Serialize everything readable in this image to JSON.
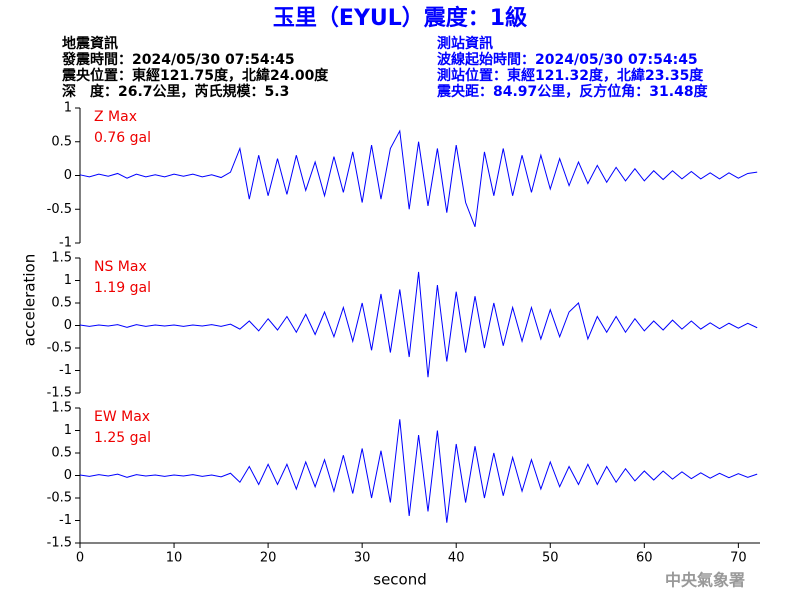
{
  "chart_data": {
    "type": "line",
    "title": "玉里（EYUL）震度：1級",
    "info_left": [
      "地震資訊",
      "發震時間：2024/05/30 07:54:45",
      "震央位置：東經121.75度，北緯24.00度",
      "深　度：26.7公里，芮氏規模：5.3"
    ],
    "info_right": [
      "測站資訊",
      "波線起始時間：2024/05/30 07:54:45",
      "測站位置：東經121.32度，北緯23.35度",
      "震央距：84.97公里，反方位角：31.48度"
    ],
    "xlabel": "second",
    "ylabel": "acceleration",
    "footer": "中央氣象署",
    "x": [
      0,
      1,
      2,
      3,
      4,
      5,
      6,
      7,
      8,
      9,
      10,
      11,
      12,
      13,
      14,
      15,
      16,
      17,
      18,
      19,
      20,
      21,
      22,
      23,
      24,
      25,
      26,
      27,
      28,
      29,
      30,
      31,
      32,
      33,
      34,
      35,
      36,
      37,
      38,
      39,
      40,
      41,
      42,
      43,
      44,
      45,
      46,
      47,
      48,
      49,
      50,
      51,
      52,
      53,
      54,
      55,
      56,
      57,
      58,
      59,
      60,
      61,
      62,
      63,
      64,
      65,
      66,
      67,
      68,
      69,
      70,
      71,
      72
    ],
    "xlim": [
      0,
      72.3
    ],
    "xticks": [
      0,
      10,
      20,
      30,
      40,
      50,
      60,
      70
    ],
    "series": [
      {
        "name": "Z Max",
        "peak": "0.76 gal",
        "color": "#0000ff",
        "ylim": [
          -1,
          1
        ],
        "yticks": [
          -1,
          -0.5,
          0,
          0.5,
          1
        ],
        "values": [
          0.01,
          -0.02,
          0.02,
          -0.01,
          0.03,
          -0.04,
          0.02,
          -0.02,
          0.01,
          -0.02,
          0.02,
          -0.01,
          0.02,
          -0.02,
          0.01,
          -0.03,
          0.05,
          0.4,
          -0.35,
          0.3,
          -0.3,
          0.25,
          -0.28,
          0.3,
          -0.22,
          0.2,
          -0.3,
          0.28,
          -0.25,
          0.35,
          -0.4,
          0.45,
          -0.35,
          0.4,
          0.66,
          -0.5,
          0.5,
          -0.45,
          0.4,
          -0.55,
          0.45,
          -0.4,
          -0.76,
          0.35,
          -0.3,
          0.4,
          -0.3,
          0.3,
          -0.25,
          0.3,
          -0.2,
          0.25,
          -0.15,
          0.2,
          -0.12,
          0.15,
          -0.1,
          0.12,
          -0.08,
          0.1,
          -0.08,
          0.07,
          -0.06,
          0.07,
          -0.05,
          0.06,
          -0.05,
          0.04,
          -0.05,
          0.04,
          -0.04,
          0.03,
          0.05
        ]
      },
      {
        "name": "NS Max",
        "peak": "1.19 gal",
        "color": "#0000ff",
        "ylim": [
          -1.5,
          1.5
        ],
        "yticks": [
          -1.5,
          -1,
          -0.5,
          0,
          0.5,
          1,
          1.5
        ],
        "values": [
          0.01,
          -0.02,
          0.01,
          -0.01,
          0.02,
          -0.04,
          0.02,
          -0.02,
          0.01,
          -0.01,
          0.01,
          -0.02,
          0.01,
          -0.01,
          0.02,
          -0.02,
          0.03,
          -0.08,
          0.1,
          -0.12,
          0.15,
          -0.1,
          0.2,
          -0.15,
          0.25,
          -0.2,
          0.3,
          -0.25,
          0.4,
          -0.35,
          0.5,
          -0.55,
          0.7,
          -0.6,
          0.8,
          -0.7,
          1.19,
          -1.15,
          0.9,
          -0.8,
          0.75,
          -0.6,
          0.65,
          -0.5,
          0.5,
          -0.45,
          0.4,
          -0.35,
          0.4,
          -0.3,
          0.35,
          -0.25,
          0.3,
          0.5,
          -0.3,
          0.2,
          -0.15,
          0.2,
          -0.15,
          0.15,
          -0.12,
          0.1,
          -0.1,
          0.12,
          -0.08,
          0.1,
          -0.08,
          0.06,
          -0.07,
          0.05,
          -0.06,
          0.05,
          -0.05
        ]
      },
      {
        "name": "EW Max",
        "peak": "1.25 gal",
        "color": "#0000ff",
        "ylim": [
          -1.5,
          1.5
        ],
        "yticks": [
          -1.5,
          -1,
          -0.5,
          0,
          0.5,
          1,
          1.5
        ],
        "values": [
          0.01,
          -0.02,
          0.02,
          -0.01,
          0.03,
          -0.04,
          0.02,
          -0.01,
          0.01,
          -0.02,
          0.01,
          -0.01,
          0.02,
          -0.02,
          0.01,
          -0.03,
          0.05,
          -0.15,
          0.2,
          -0.2,
          0.25,
          -0.2,
          0.25,
          -0.3,
          0.3,
          -0.25,
          0.35,
          -0.35,
          0.45,
          -0.4,
          0.6,
          -0.5,
          0.55,
          -0.6,
          1.25,
          -0.9,
          0.9,
          -0.8,
          1.0,
          -1.05,
          0.7,
          -0.6,
          0.65,
          -0.5,
          0.5,
          -0.45,
          0.4,
          -0.35,
          0.35,
          -0.3,
          0.3,
          -0.25,
          0.2,
          -0.2,
          0.25,
          -0.2,
          0.2,
          -0.15,
          0.15,
          -0.12,
          0.1,
          -0.1,
          0.1,
          -0.08,
          0.08,
          -0.07,
          0.06,
          -0.06,
          0.05,
          -0.05,
          0.04,
          -0.04,
          0.03
        ]
      }
    ]
  }
}
